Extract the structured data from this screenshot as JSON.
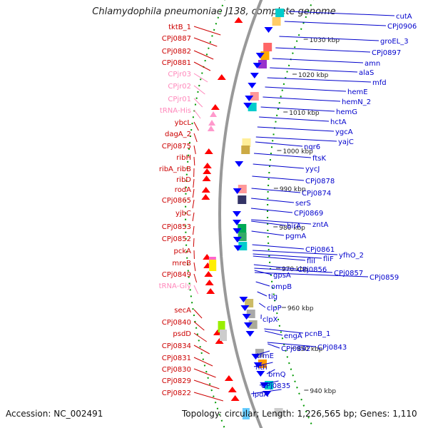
{
  "title": "Chlamydophila pneumoniae J138, complete genome",
  "footer": {
    "accession": "Accession: NC_002491",
    "stats": "Topology: circular; Length: 1,226,565 bp; Genes: 1,110"
  },
  "colors": {
    "forward_gene": "#ff0000",
    "reverse_gene": "#0000ff",
    "rna_gene": "#ff99cc",
    "label_red": "#cc0000",
    "label_blue": "#0000cc",
    "label_pink": "#ff88bb",
    "tick_green": "#009900",
    "backbone": "#999999"
  },
  "ticks": [
    "1030 kbp",
    "1020 kbp",
    "1010 kbp",
    "1000 kbp",
    "990 kbp",
    "980 kbp",
    "970 kbp",
    "960 kbp",
    "950 kbp",
    "940 kbp"
  ],
  "left_labels": [
    {
      "text": "tktB_1",
      "type": "cds"
    },
    {
      "text": "CPj0887",
      "type": "cds"
    },
    {
      "text": "CPj0882",
      "type": "cds"
    },
    {
      "text": "CPj0881",
      "type": "cds"
    },
    {
      "text": "CPjr03",
      "type": "rna"
    },
    {
      "text": "CPjr02",
      "type": "rna"
    },
    {
      "text": "CPjr01",
      "type": "rna"
    },
    {
      "text": "tRNA-His",
      "type": "rna"
    },
    {
      "text": "ybcL",
      "type": "cds"
    },
    {
      "text": "dagA_2",
      "type": "cds"
    },
    {
      "text": "CPj0875",
      "type": "cds"
    },
    {
      "text": "ribH",
      "type": "cds"
    },
    {
      "text": "ribA_ribB",
      "type": "cds"
    },
    {
      "text": "ribD",
      "type": "cds"
    },
    {
      "text": "rodA",
      "type": "cds"
    },
    {
      "text": "CPj0865",
      "type": "cds"
    },
    {
      "text": "yjbC",
      "type": "cds"
    },
    {
      "text": "CPj0853",
      "type": "cds"
    },
    {
      "text": "CPj0852",
      "type": "cds"
    },
    {
      "text": "pckA",
      "type": "cds"
    },
    {
      "text": "mreB",
      "type": "cds"
    },
    {
      "text": "CPj0849",
      "type": "cds"
    },
    {
      "text": "tRNA-Gly",
      "type": "rna"
    },
    {
      "text": "secA",
      "type": "cds"
    },
    {
      "text": "CPj0840",
      "type": "cds"
    },
    {
      "text": "psdD",
      "type": "cds"
    },
    {
      "text": "CPj0834",
      "type": "cds"
    },
    {
      "text": "CPj0831",
      "type": "cds"
    },
    {
      "text": "CPj0830",
      "type": "cds"
    },
    {
      "text": "CPj0829",
      "type": "cds"
    },
    {
      "text": "CPj0822",
      "type": "cds"
    }
  ],
  "right_labels": [
    "cutA",
    "CPj0906",
    "groEL_3",
    "CPj0897",
    "amn",
    "alaS",
    "mfd",
    "hemE",
    "hemN_2",
    "hemG",
    "hctA",
    "ygcA",
    "yajC",
    "nqr6",
    "ftsK",
    "yycJ",
    "CPj0878",
    "CPj0874",
    "serS",
    "CPj0869",
    "birA",
    "zntA",
    "pgmA",
    "CPj0861",
    "yfhO_2",
    "fliI",
    "fliF",
    "CPj0856",
    "CPj0857",
    "CPj0859",
    "gpsA",
    "ompB",
    "tig",
    "clpP",
    "clpX",
    "pcnB_1",
    "engA",
    "CPj0843",
    "CPj0842",
    "trmE",
    "nth",
    "brnQ",
    "CPj0835",
    "lpdA"
  ]
}
